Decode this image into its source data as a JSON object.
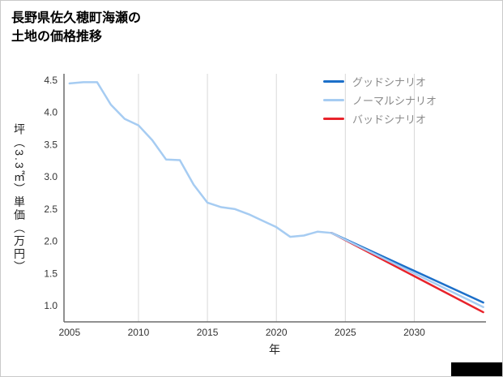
{
  "chart_data": {
    "type": "line",
    "title": "長野県佐久穂町海瀬の\n土地の価格推移",
    "xlabel": "年",
    "ylabel": "坪（3.3㎡）単価（万円）",
    "xlim": [
      2004.6,
      2035.2
    ],
    "ylim": [
      0.75,
      4.6
    ],
    "x_ticks": [
      2005,
      2010,
      2015,
      2020,
      2025,
      2030
    ],
    "y_ticks": [
      1,
      1.5,
      2,
      2.5,
      3,
      3.5,
      4,
      4.5
    ],
    "y_tick_labels": [
      "1.0",
      "1.5",
      "2.0",
      "2.5",
      "3.0",
      "3.5",
      "4.0",
      "4.5"
    ],
    "grid": "vertical-only",
    "legend_position": "top-right",
    "history": {
      "color": "#a6ccf2",
      "x": [
        2005,
        2006,
        2007,
        2008,
        2009,
        2010,
        2011,
        2012,
        2013,
        2014,
        2015,
        2016,
        2017,
        2018,
        2019,
        2020,
        2021,
        2022,
        2023,
        2024
      ],
      "values": [
        4.45,
        4.47,
        4.47,
        4.12,
        3.9,
        3.8,
        3.57,
        3.27,
        3.26,
        2.88,
        2.6,
        2.53,
        2.5,
        2.42,
        2.32,
        2.22,
        2.07,
        2.09,
        2.15,
        2.13
      ]
    },
    "series": [
      {
        "name": "グッドシナリオ",
        "color": "#1c6fc9",
        "x": [
          2024,
          2035
        ],
        "values": [
          2.13,
          1.05
        ]
      },
      {
        "name": "ノーマルシナリオ",
        "color": "#a6ccf2",
        "x": [
          2024,
          2035
        ],
        "values": [
          2.13,
          0.98
        ]
      },
      {
        "name": "バッドシナリオ",
        "color": "#e8232b",
        "x": [
          2024,
          2035
        ],
        "values": [
          2.13,
          0.9
        ]
      }
    ]
  }
}
